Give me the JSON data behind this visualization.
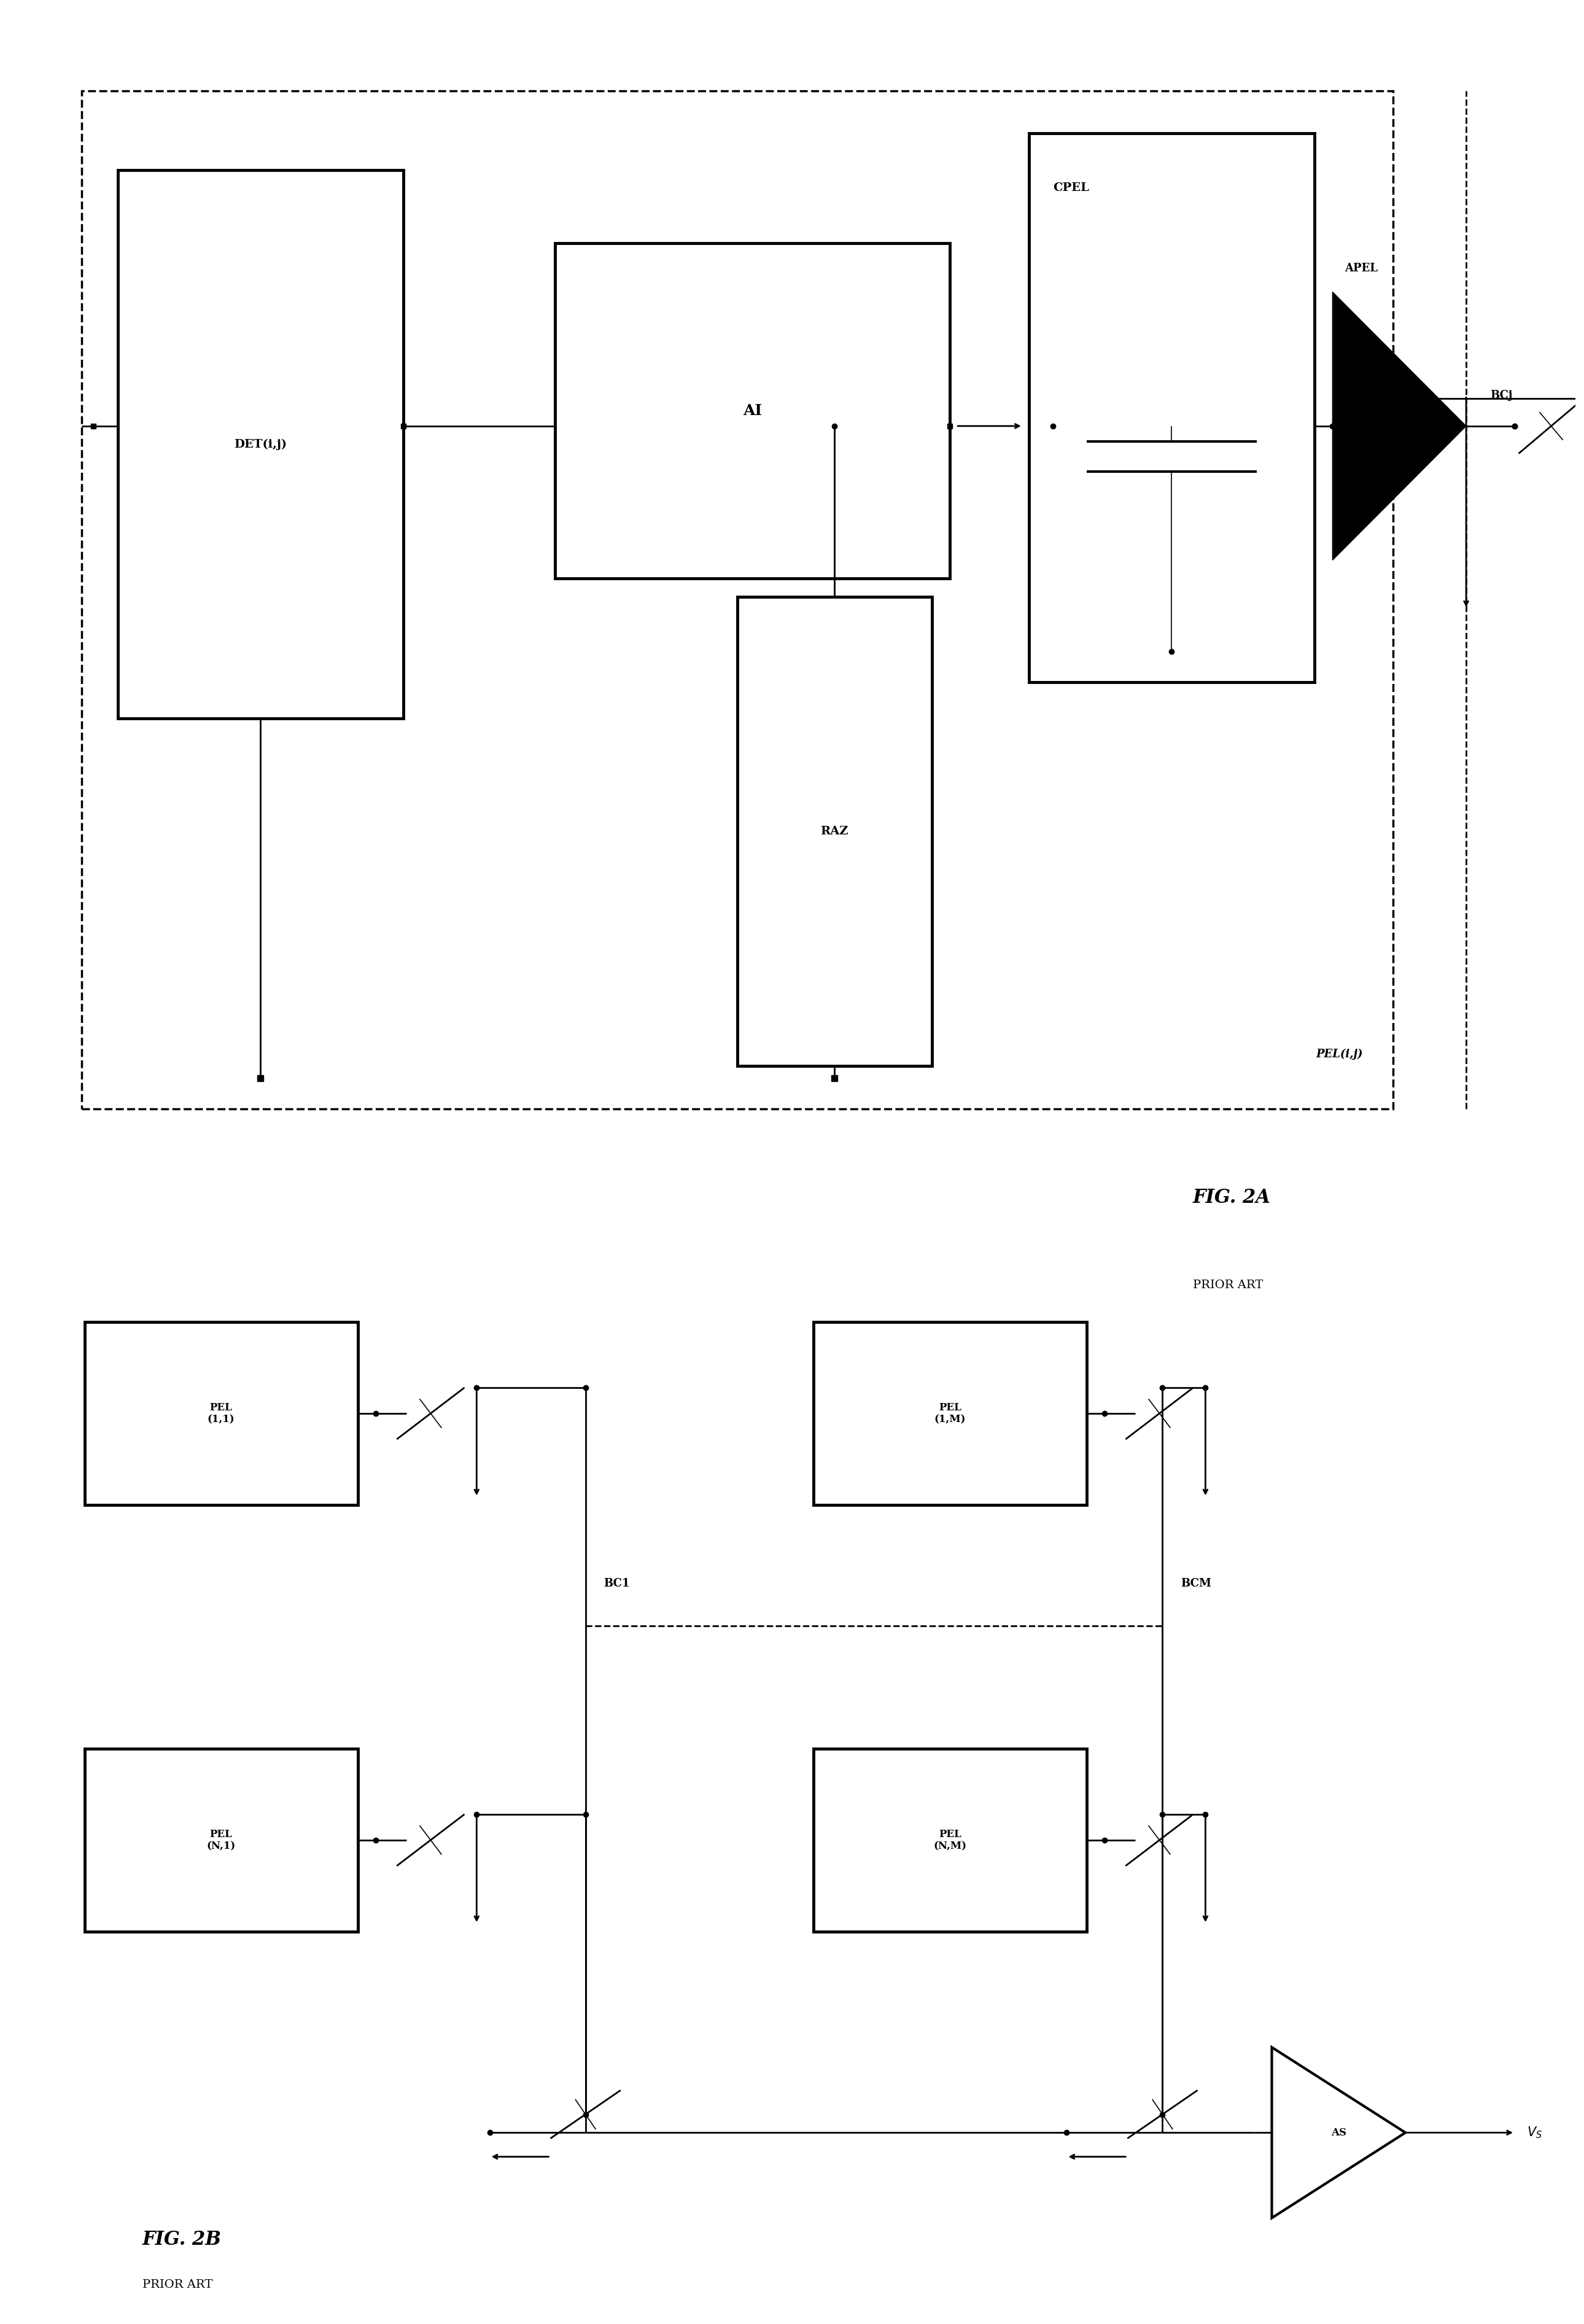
{
  "fig_width": 25.8,
  "fig_height": 37.85,
  "bg_color": "#ffffff",
  "fig2a_title": "FIG. 2A",
  "fig2a_subtitle": "PRIOR ART",
  "fig2b_title": "FIG. 2B",
  "fig2b_subtitle": "PRIOR ART"
}
